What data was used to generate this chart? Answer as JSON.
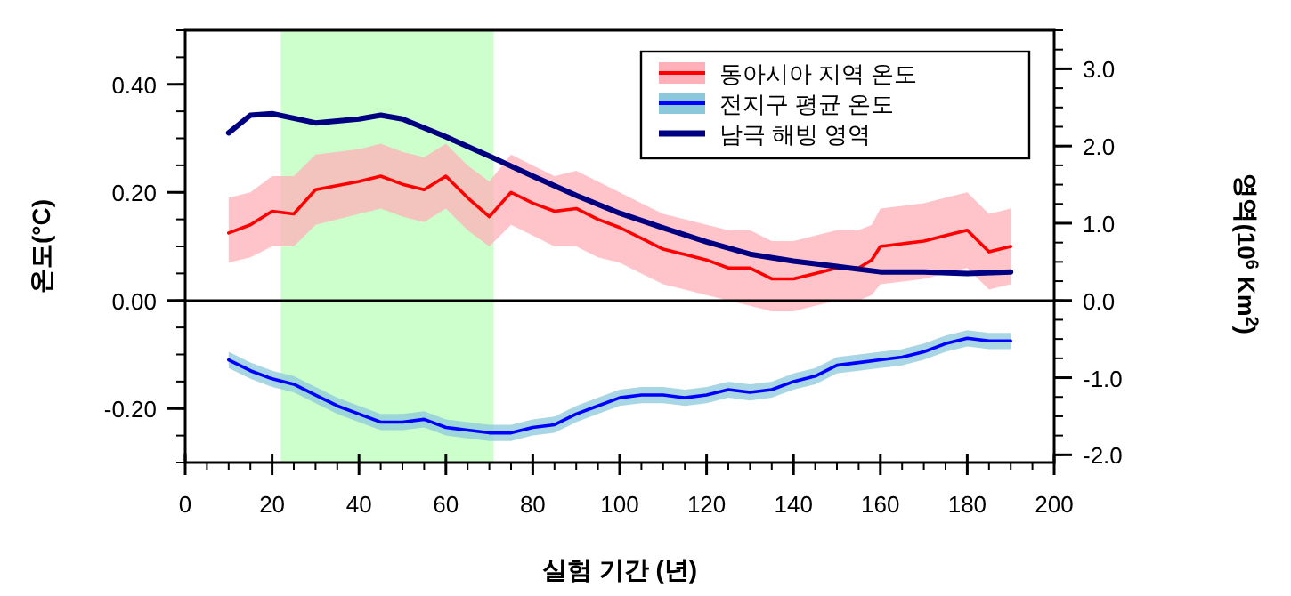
{
  "chart_data": {
    "type": "line",
    "xlabel": "실험 기간 (년)",
    "ylabel": "온도(°C)",
    "y2label": "영역(10$^{6}$ Km$^{2}$)",
    "xlim": [
      0,
      200
    ],
    "xticks": [
      0,
      20,
      40,
      60,
      80,
      100,
      120,
      140,
      160,
      180,
      200
    ],
    "ylim": [
      -0.3,
      0.5
    ],
    "yticks": [
      {
        "value": 0.4,
        "label": "0.40"
      },
      {
        "value": 0.2,
        "label": "0.20"
      },
      {
        "value": 0,
        "label": "0.00"
      },
      {
        "value": -0.2,
        "label": "-0.20"
      }
    ],
    "y2lim": [
      -2.1,
      3.5
    ],
    "y2ticks": [
      {
        "value": 3,
        "label": "3.0"
      },
      {
        "value": 2,
        "label": "2.0"
      },
      {
        "value": 1,
        "label": "1.0"
      },
      {
        "value": 0,
        "label": "0.0"
      },
      {
        "value": -1,
        "label": "-1.0"
      },
      {
        "value": -2,
        "label": "-2.0"
      }
    ],
    "legend": "top right",
    "grid": false,
    "bands": [
      {
        "axis": "x",
        "from": 22,
        "to": 71,
        "color": "#ccffcc"
      }
    ],
    "ref_lines": [
      {
        "axis": "y",
        "value": 0,
        "color": "#000000"
      }
    ],
    "series": [
      {
        "name": "동아시아 지역 온도",
        "color": "#ff0000",
        "x": [
          10,
          15,
          20,
          25,
          30,
          40,
          45,
          50,
          55,
          60,
          65,
          70,
          75,
          80,
          85,
          90,
          95,
          100,
          105,
          110,
          115,
          120,
          125,
          130,
          135,
          140,
          145,
          150,
          155,
          158,
          160,
          165,
          170,
          175,
          180,
          185,
          190
        ],
        "values": [
          0.125,
          0.14,
          0.165,
          0.16,
          0.205,
          0.22,
          0.23,
          0.215,
          0.205,
          0.23,
          0.19,
          0.155,
          0.2,
          0.18,
          0.165,
          0.17,
          0.15,
          0.135,
          0.115,
          0.095,
          0.085,
          0.075,
          0.06,
          0.06,
          0.04,
          0.04,
          0.05,
          0.06,
          0.06,
          0.075,
          0.1,
          0.105,
          0.11,
          0.12,
          0.13,
          0.09,
          0.1
        ],
        "lower": [
          0.07,
          0.08,
          0.1,
          0.1,
          0.14,
          0.16,
          0.17,
          0.155,
          0.145,
          0.17,
          0.13,
          0.1,
          0.14,
          0.12,
          0.1,
          0.1,
          0.08,
          0.07,
          0.05,
          0.03,
          0.02,
          0.01,
          0.0,
          -0.01,
          -0.02,
          -0.02,
          -0.01,
          0.0,
          0.0,
          0.01,
          0.03,
          0.035,
          0.04,
          0.05,
          0.06,
          0.02,
          0.03
        ],
        "upper": [
          0.19,
          0.2,
          0.23,
          0.23,
          0.27,
          0.28,
          0.29,
          0.275,
          0.265,
          0.29,
          0.25,
          0.22,
          0.27,
          0.25,
          0.23,
          0.24,
          0.22,
          0.2,
          0.18,
          0.16,
          0.15,
          0.14,
          0.13,
          0.13,
          0.11,
          0.11,
          0.12,
          0.13,
          0.13,
          0.14,
          0.17,
          0.175,
          0.18,
          0.19,
          0.2,
          0.16,
          0.17
        ]
      },
      {
        "name": "전지구 평균 온도",
        "color": "#0000ff",
        "x": [
          10,
          15,
          20,
          25,
          30,
          35,
          40,
          45,
          50,
          55,
          60,
          65,
          70,
          75,
          80,
          85,
          90,
          95,
          100,
          105,
          110,
          115,
          120,
          125,
          130,
          135,
          140,
          145,
          150,
          155,
          160,
          165,
          170,
          175,
          180,
          185,
          190
        ],
        "values": [
          -0.11,
          -0.13,
          -0.145,
          -0.155,
          -0.175,
          -0.195,
          -0.21,
          -0.225,
          -0.225,
          -0.22,
          -0.235,
          -0.24,
          -0.245,
          -0.245,
          -0.235,
          -0.23,
          -0.21,
          -0.195,
          -0.18,
          -0.175,
          -0.175,
          -0.18,
          -0.175,
          -0.165,
          -0.17,
          -0.165,
          -0.15,
          -0.14,
          -0.12,
          -0.115,
          -0.11,
          -0.105,
          -0.095,
          -0.08,
          -0.07,
          -0.075,
          -0.075
        ],
        "lower": [
          -0.125,
          -0.145,
          -0.16,
          -0.17,
          -0.19,
          -0.21,
          -0.225,
          -0.24,
          -0.24,
          -0.235,
          -0.25,
          -0.255,
          -0.26,
          -0.26,
          -0.25,
          -0.245,
          -0.225,
          -0.21,
          -0.195,
          -0.19,
          -0.19,
          -0.195,
          -0.19,
          -0.18,
          -0.185,
          -0.18,
          -0.165,
          -0.155,
          -0.135,
          -0.13,
          -0.125,
          -0.12,
          -0.11,
          -0.095,
          -0.085,
          -0.09,
          -0.09
        ],
        "upper": [
          -0.095,
          -0.115,
          -0.13,
          -0.14,
          -0.16,
          -0.18,
          -0.195,
          -0.21,
          -0.21,
          -0.205,
          -0.22,
          -0.225,
          -0.23,
          -0.23,
          -0.22,
          -0.215,
          -0.195,
          -0.18,
          -0.165,
          -0.16,
          -0.16,
          -0.165,
          -0.16,
          -0.15,
          -0.155,
          -0.15,
          -0.135,
          -0.125,
          -0.105,
          -0.1,
          -0.095,
          -0.09,
          -0.08,
          -0.065,
          -0.055,
          -0.06,
          -0.06
        ]
      },
      {
        "name": "남극 해빙 영역",
        "color": "#000080",
        "axis": "y2",
        "x": [
          10,
          15,
          20,
          30,
          40,
          45,
          50,
          60,
          70,
          80,
          90,
          100,
          110,
          120,
          130,
          140,
          150,
          160,
          170,
          180,
          190
        ],
        "values": [
          2.17,
          2.4,
          2.42,
          2.3,
          2.35,
          2.4,
          2.35,
          2.12,
          1.87,
          1.61,
          1.36,
          1.13,
          0.94,
          0.76,
          0.6,
          0.51,
          0.44,
          0.37,
          0.37,
          0.35,
          0.37
        ]
      }
    ]
  }
}
